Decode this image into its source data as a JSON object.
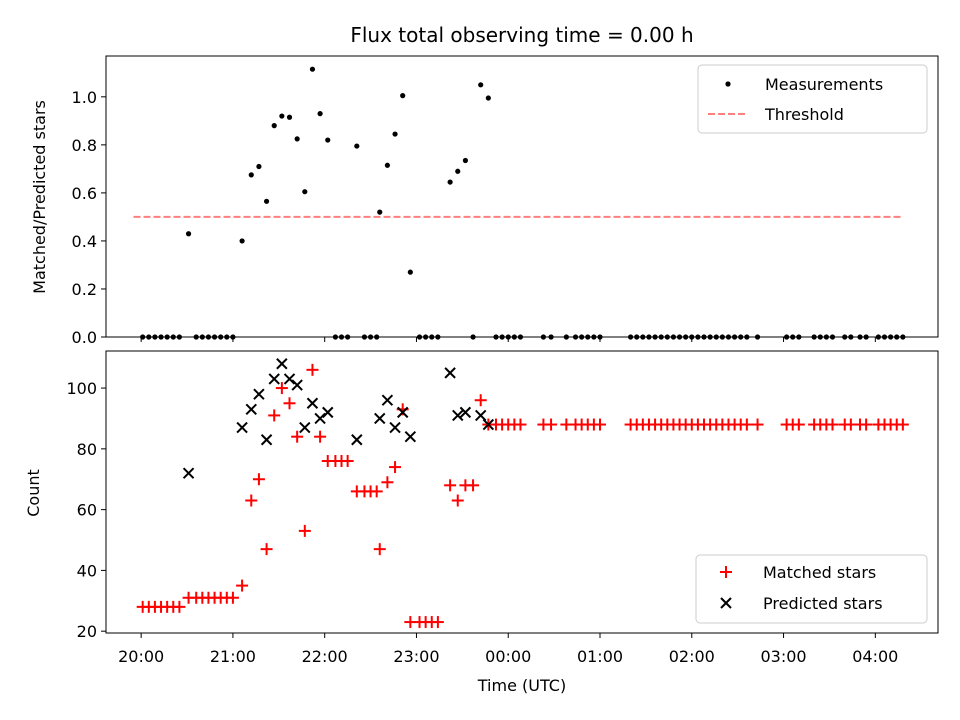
{
  "chart_data": [
    {
      "type": "scatter",
      "title": "Flux total observing time = 0.00 h",
      "xlabel": "",
      "ylabel": "Matched/Predicted stars",
      "ylim": [
        0.0,
        1.17
      ],
      "yticks": [
        0.0,
        0.2,
        0.4,
        0.6,
        0.8,
        1.0
      ],
      "yticklabels": [
        "0.0",
        "0.2",
        "0.4",
        "0.6",
        "0.8",
        "1.0"
      ],
      "legend_position": "top-right",
      "legend": [
        {
          "label": "Measurements",
          "marker": "dot",
          "color": "#000000"
        },
        {
          "label": "Threshold",
          "marker": "dashed-line",
          "color": "#ff7f7f"
        }
      ],
      "threshold": {
        "y": 0.5,
        "x_start": -0.0833,
        "x_end": 8.2833
      },
      "series": [
        {
          "name": "Measurements",
          "color": "#000000",
          "points": [
            [
              0.0167,
              0
            ],
            [
              0.0833,
              0
            ],
            [
              0.15,
              0
            ],
            [
              0.2167,
              0
            ],
            [
              0.2833,
              0
            ],
            [
              0.35,
              0
            ],
            [
              0.4167,
              0
            ],
            [
              0.5167,
              0.43
            ],
            [
              0.6,
              0
            ],
            [
              0.6667,
              0
            ],
            [
              0.7333,
              0
            ],
            [
              0.8,
              0
            ],
            [
              0.8667,
              0
            ],
            [
              0.9333,
              0
            ],
            [
              1.0,
              0
            ],
            [
              1.1,
              0.4
            ],
            [
              1.2,
              0.675
            ],
            [
              1.2833,
              0.71
            ],
            [
              1.3667,
              0.565
            ],
            [
              1.45,
              0.88
            ],
            [
              1.5333,
              0.92
            ],
            [
              1.6167,
              0.915
            ],
            [
              1.7,
              0.825
            ],
            [
              1.7833,
              0.605
            ],
            [
              1.8667,
              1.115
            ],
            [
              1.95,
              0.93
            ],
            [
              2.0333,
              0.82
            ],
            [
              2.1167,
              0
            ],
            [
              2.1833,
              0
            ],
            [
              2.25,
              0
            ],
            [
              2.35,
              0.795
            ],
            [
              2.4333,
              0
            ],
            [
              2.5,
              0
            ],
            [
              2.5667,
              0
            ],
            [
              2.6,
              0.52
            ],
            [
              2.6833,
              0.715
            ],
            [
              2.7667,
              0.845
            ],
            [
              2.85,
              1.005
            ],
            [
              2.9333,
              0.27
            ],
            [
              3.0333,
              0
            ],
            [
              3.1,
              0
            ],
            [
              3.1667,
              0
            ],
            [
              3.2333,
              0
            ],
            [
              3.3667,
              0.645
            ],
            [
              3.45,
              0.69
            ],
            [
              3.5333,
              0.735
            ],
            [
              3.6167,
              0
            ],
            [
              3.7,
              1.05
            ],
            [
              3.7833,
              0.995
            ],
            [
              3.8667,
              0
            ],
            [
              3.9333,
              0
            ],
            [
              4.0,
              0
            ],
            [
              4.0667,
              0
            ],
            [
              4.1333,
              0
            ],
            [
              4.3833,
              0
            ],
            [
              4.4667,
              0
            ],
            [
              4.6333,
              0
            ],
            [
              4.7333,
              0
            ],
            [
              4.8,
              0
            ],
            [
              4.8667,
              0
            ],
            [
              4.9333,
              0
            ],
            [
              5.0,
              0
            ],
            [
              5.3333,
              0
            ],
            [
              5.4,
              0
            ],
            [
              5.4667,
              0
            ],
            [
              5.5333,
              0
            ],
            [
              5.6,
              0
            ],
            [
              5.6667,
              0
            ],
            [
              5.7333,
              0
            ],
            [
              5.8,
              0
            ],
            [
              5.8667,
              0
            ],
            [
              5.9333,
              0
            ],
            [
              6.0,
              0
            ],
            [
              6.0667,
              0
            ],
            [
              6.1333,
              0
            ],
            [
              6.2,
              0
            ],
            [
              6.2667,
              0
            ],
            [
              6.3333,
              0
            ],
            [
              6.4,
              0
            ],
            [
              6.4667,
              0
            ],
            [
              6.5333,
              0
            ],
            [
              6.6,
              0
            ],
            [
              6.7167,
              0
            ],
            [
              7.0333,
              0
            ],
            [
              7.1,
              0
            ],
            [
              7.1667,
              0
            ],
            [
              7.3333,
              0
            ],
            [
              7.4,
              0
            ],
            [
              7.4667,
              0
            ],
            [
              7.5333,
              0
            ],
            [
              7.6667,
              0
            ],
            [
              7.7333,
              0
            ],
            [
              7.8333,
              0
            ],
            [
              7.9,
              0
            ],
            [
              8.0333,
              0
            ],
            [
              8.1,
              0
            ],
            [
              8.1667,
              0
            ],
            [
              8.2333,
              0
            ],
            [
              8.3,
              0
            ]
          ]
        }
      ]
    },
    {
      "type": "scatter",
      "title": "",
      "xlabel": "Time (UTC)",
      "ylabel": "Count",
      "ylim": [
        19.4,
        112.2
      ],
      "yticks": [
        20,
        40,
        60,
        80,
        100
      ],
      "yticklabels": [
        "20",
        "40",
        "60",
        "80",
        "100"
      ],
      "legend_position": "bottom-right",
      "legend": [
        {
          "label": "Matched stars",
          "marker": "plus",
          "color": "#ff0000"
        },
        {
          "label": "Predicted stars",
          "marker": "x",
          "color": "#000000"
        }
      ],
      "series": [
        {
          "name": "Matched stars",
          "color": "#ff0000",
          "points": [
            [
              0.0167,
              28
            ],
            [
              0.0833,
              28
            ],
            [
              0.15,
              28
            ],
            [
              0.2167,
              28
            ],
            [
              0.2833,
              28
            ],
            [
              0.35,
              28
            ],
            [
              0.4167,
              28
            ],
            [
              0.5167,
              31
            ],
            [
              0.6,
              31
            ],
            [
              0.6667,
              31
            ],
            [
              0.7333,
              31
            ],
            [
              0.8,
              31
            ],
            [
              0.8667,
              31
            ],
            [
              0.9333,
              31
            ],
            [
              1.0,
              31
            ],
            [
              1.1,
              35
            ],
            [
              1.2,
              63
            ],
            [
              1.2833,
              70
            ],
            [
              1.3667,
              47
            ],
            [
              1.45,
              91
            ],
            [
              1.5333,
              100
            ],
            [
              1.6167,
              95
            ],
            [
              1.7,
              84
            ],
            [
              1.7833,
              53
            ],
            [
              1.8667,
              106
            ],
            [
              1.95,
              84
            ],
            [
              2.0333,
              76
            ],
            [
              2.1167,
              76
            ],
            [
              2.1833,
              76
            ],
            [
              2.25,
              76
            ],
            [
              2.35,
              66
            ],
            [
              2.4333,
              66
            ],
            [
              2.5,
              66
            ],
            [
              2.5667,
              66
            ],
            [
              2.6,
              47
            ],
            [
              2.6833,
              69
            ],
            [
              2.7667,
              74
            ],
            [
              2.85,
              93
            ],
            [
              2.9333,
              23
            ],
            [
              3.0333,
              23
            ],
            [
              3.1,
              23
            ],
            [
              3.1667,
              23
            ],
            [
              3.2333,
              23
            ],
            [
              3.3667,
              68
            ],
            [
              3.45,
              63
            ],
            [
              3.5333,
              68
            ],
            [
              3.6167,
              68
            ],
            [
              3.7,
              96
            ],
            [
              3.7833,
              88
            ],
            [
              3.8667,
              88
            ],
            [
              3.9333,
              88
            ],
            [
              4.0,
              88
            ],
            [
              4.0667,
              88
            ],
            [
              4.1333,
              88
            ],
            [
              4.3833,
              88
            ],
            [
              4.4667,
              88
            ],
            [
              4.6333,
              88
            ],
            [
              4.7333,
              88
            ],
            [
              4.8,
              88
            ],
            [
              4.8667,
              88
            ],
            [
              4.9333,
              88
            ],
            [
              5.0,
              88
            ],
            [
              5.3333,
              88
            ],
            [
              5.4,
              88
            ],
            [
              5.4667,
              88
            ],
            [
              5.5333,
              88
            ],
            [
              5.6,
              88
            ],
            [
              5.6667,
              88
            ],
            [
              5.7333,
              88
            ],
            [
              5.8,
              88
            ],
            [
              5.8667,
              88
            ],
            [
              5.9333,
              88
            ],
            [
              6.0,
              88
            ],
            [
              6.0667,
              88
            ],
            [
              6.1333,
              88
            ],
            [
              6.2,
              88
            ],
            [
              6.2667,
              88
            ],
            [
              6.3333,
              88
            ],
            [
              6.4,
              88
            ],
            [
              6.4667,
              88
            ],
            [
              6.5333,
              88
            ],
            [
              6.6,
              88
            ],
            [
              6.7167,
              88
            ],
            [
              7.0333,
              88
            ],
            [
              7.1,
              88
            ],
            [
              7.1667,
              88
            ],
            [
              7.3333,
              88
            ],
            [
              7.4,
              88
            ],
            [
              7.4667,
              88
            ],
            [
              7.5333,
              88
            ],
            [
              7.6667,
              88
            ],
            [
              7.7333,
              88
            ],
            [
              7.8333,
              88
            ],
            [
              7.9,
              88
            ],
            [
              8.0333,
              88
            ],
            [
              8.1,
              88
            ],
            [
              8.1667,
              88
            ],
            [
              8.2333,
              88
            ],
            [
              8.3,
              88
            ]
          ]
        },
        {
          "name": "Predicted stars",
          "color": "#000000",
          "points": [
            [
              0.5167,
              72
            ],
            [
              1.1,
              87
            ],
            [
              1.2,
              93
            ],
            [
              1.2833,
              98
            ],
            [
              1.3667,
              83
            ],
            [
              1.45,
              103
            ],
            [
              1.5333,
              108
            ],
            [
              1.6167,
              103
            ],
            [
              1.7,
              101
            ],
            [
              1.7833,
              87
            ],
            [
              1.8667,
              95
            ],
            [
              1.95,
              90
            ],
            [
              2.0333,
              92
            ],
            [
              2.35,
              83
            ],
            [
              2.6,
              90
            ],
            [
              2.6833,
              96
            ],
            [
              2.7667,
              87
            ],
            [
              2.85,
              92
            ],
            [
              2.9333,
              84
            ],
            [
              3.3667,
              105
            ],
            [
              3.45,
              91
            ],
            [
              3.5333,
              92
            ],
            [
              3.7,
              91
            ],
            [
              3.7833,
              88
            ]
          ]
        }
      ],
      "xticks": [
        0,
        1,
        2,
        3,
        4,
        5,
        6,
        7,
        8
      ],
      "xticklabels": [
        "20:00",
        "21:00",
        "22:00",
        "23:00",
        "00:00",
        "01:00",
        "02:00",
        "03:00",
        "04:00"
      ],
      "xlim": [
        -0.383,
        8.683
      ]
    }
  ]
}
